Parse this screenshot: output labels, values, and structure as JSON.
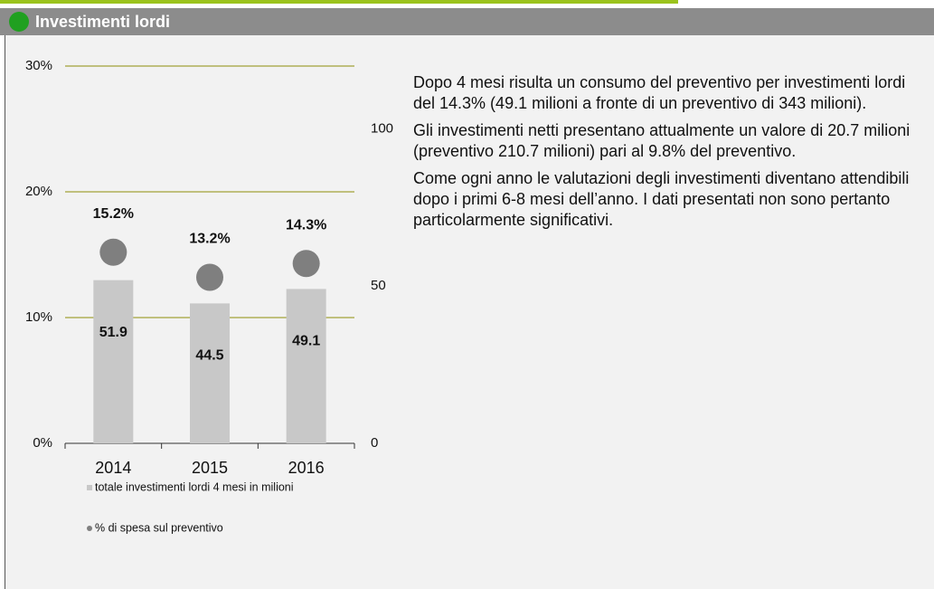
{
  "header": {
    "title": "Investimenti lordi"
  },
  "chart_data": {
    "type": "bar",
    "categories": [
      "2014",
      "2015",
      "2016"
    ],
    "series": [
      {
        "name": "totale investimenti lordi 4 mesi in milioni",
        "type": "bar",
        "axis": "y2",
        "color": "#c8c8c8",
        "values": [
          51.9,
          44.5,
          49.1
        ]
      },
      {
        "name": "% di spesa sul preventivo",
        "type": "scatter",
        "axis": "y",
        "color": "#7f7f7f",
        "values": [
          15.2,
          13.2,
          14.3
        ],
        "value_labels": [
          "15.2%",
          "13.2%",
          "14.3%"
        ]
      }
    ],
    "ylim": [
      0,
      30
    ],
    "yticks": [
      {
        "value": 0,
        "label": "0%"
      },
      {
        "value": 10,
        "label": "10%"
      },
      {
        "value": 20,
        "label": "20%"
      },
      {
        "value": 30,
        "label": "30%"
      }
    ],
    "y2lim": [
      0,
      120
    ],
    "y2ticks": [
      0,
      50,
      100
    ],
    "grid": true,
    "grid_color": "#a3a33a"
  },
  "text": {
    "paragraphs": [
      "Dopo 4 mesi risulta un consumo del preventivo per investimenti lordi del 14.3% (49.1 milioni a fronte di un preventivo di 343 milioni).",
      "Gli investimenti netti presentano attualmente un valore di 20.7 milioni (preventivo 210.7 milioni) pari al 9.8% del preventivo.",
      "Come ogni anno le valutazioni degli investimenti diventano attendibili dopo i primi 6-8 mesi dell’anno. I dati presentati non sono pertanto particolarmente significativi."
    ]
  }
}
